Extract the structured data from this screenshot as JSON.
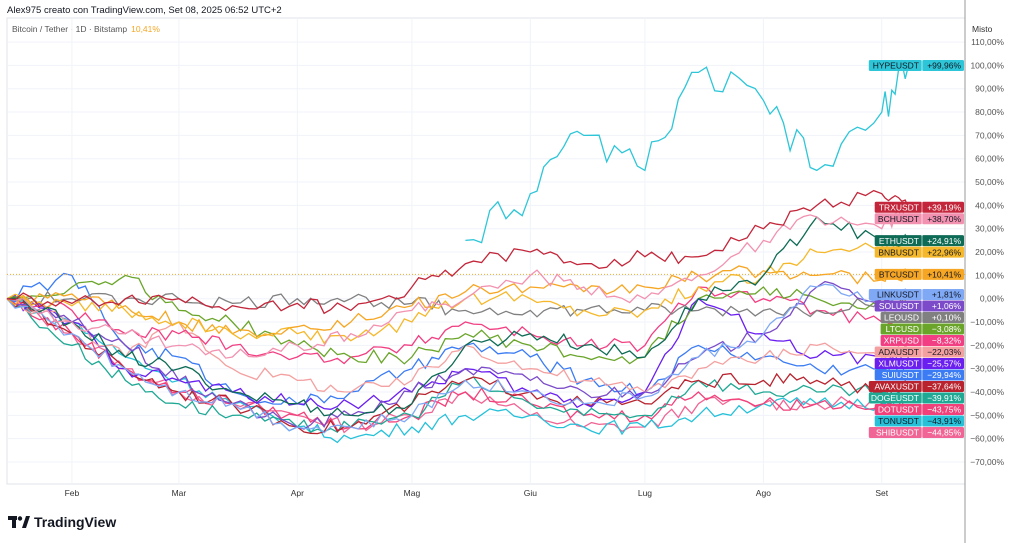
{
  "header": {
    "title": "Alex975 creato con TradingView.com, Set 08, 2025 06:52 UTC+2"
  },
  "legend": {
    "symbol": "Bitcoin / Tether · 1D · Bitstamp",
    "value": "10,41%"
  },
  "axis_mode": "Misto",
  "logo": {
    "text": "TradingView",
    "icon": "tradingview-logo-icon"
  },
  "chart_data": {
    "type": "line",
    "ylabel": "",
    "xlabel": "",
    "ylim": [
      -75,
      115
    ],
    "y_unit": "%",
    "yticks": [
      110,
      100,
      90,
      80,
      70,
      60,
      50,
      40,
      30,
      20,
      10,
      0,
      -10,
      -20,
      -30,
      -40,
      -50,
      -60,
      -70
    ],
    "x_tick_labels": [
      "Feb",
      "Mar",
      "Apr",
      "Mag",
      "Giu",
      "Lug",
      "Ago",
      "Set"
    ],
    "x_tick_dates": [
      "2025-02-01",
      "2025-03-01",
      "2025-04-01",
      "2025-05-01",
      "2025-06-01",
      "2025-07-01",
      "2025-08-01",
      "2025-09-01"
    ],
    "x": [
      "2025-01-15",
      "2025-02-01",
      "2025-02-15",
      "2025-03-01",
      "2025-03-15",
      "2025-04-01",
      "2025-04-15",
      "2025-05-01",
      "2025-05-15",
      "2025-06-01",
      "2025-06-15",
      "2025-07-01",
      "2025-07-15",
      "2025-08-01",
      "2025-08-15",
      "2025-09-01",
      "2025-09-08"
    ],
    "grid": true,
    "legend_placement": "right",
    "series": [
      {
        "name": "HYPEUSDT",
        "label": "+99,96%",
        "color": "#2dc6d8",
        "dark_text": true,
        "values": [
          null,
          null,
          null,
          null,
          null,
          null,
          null,
          null,
          25,
          45,
          70,
          55,
          97,
          85,
          55,
          80,
          99.96
        ]
      },
      {
        "name": "TRXUSDT",
        "label": "+39,19%",
        "color": "#c3263a",
        "values": [
          0,
          -2,
          0,
          0,
          -3,
          -2,
          -5,
          5,
          15,
          20,
          15,
          18,
          18,
          30,
          40,
          45,
          39.19
        ]
      },
      {
        "name": "BCHUSDT",
        "label": "+38,70%",
        "color": "#f292b0",
        "dark_text": true,
        "values": [
          0,
          -10,
          -15,
          -20,
          -25,
          -20,
          -15,
          -5,
          0,
          10,
          5,
          0,
          10,
          25,
          35,
          30,
          38.7
        ]
      },
      {
        "name": "ETHUSDT",
        "label": "+24,91%",
        "color": "#0e6b55",
        "values": [
          0,
          -10,
          -25,
          -30,
          -40,
          -45,
          -50,
          -45,
          -20,
          -15,
          -20,
          -25,
          0,
          10,
          35,
          25,
          24.91
        ]
      },
      {
        "name": "BNBUSDT",
        "label": "+22,96%",
        "color": "#f5b82a",
        "dark_text": true,
        "values": [
          0,
          -3,
          -5,
          -10,
          -15,
          -15,
          -18,
          -10,
          0,
          0,
          -5,
          -5,
          5,
          10,
          20,
          22,
          22.96
        ]
      },
      {
        "name": "BTCUSDT",
        "label": "+10,41%",
        "color": "#f6a623",
        "dark_text": true,
        "values": [
          0,
          2,
          -3,
          -10,
          -15,
          -12,
          -10,
          -3,
          3,
          5,
          3,
          5,
          10,
          12,
          10,
          8,
          10.41
        ]
      },
      {
        "name": "LINKUSDT",
        "label": "+1,81%",
        "color": "#7fa8f5",
        "dark_text": true,
        "values": [
          0,
          -15,
          -30,
          -40,
          -45,
          -55,
          -55,
          -50,
          -35,
          -40,
          -45,
          -42,
          -25,
          -15,
          5,
          0,
          1.81
        ]
      },
      {
        "name": "SOLUSDT",
        "label": "+1,06%",
        "color": "#7b4bc9",
        "values": [
          0,
          -10,
          -20,
          -35,
          -45,
          -55,
          -50,
          -40,
          -30,
          -35,
          -40,
          -40,
          -25,
          -15,
          5,
          0,
          1.06
        ]
      },
      {
        "name": "LEOUSD",
        "label": "+0,10%",
        "color": "#808080",
        "values": [
          0,
          0,
          0,
          0,
          -2,
          0,
          0,
          -2,
          -5,
          -5,
          -5,
          -5,
          -5,
          -5,
          -5,
          0,
          0.1
        ]
      },
      {
        "name": "LTCUSD",
        "label": "−3,08%",
        "color": "#6aa52a",
        "values": [
          0,
          5,
          10,
          -5,
          -10,
          -20,
          -25,
          -25,
          -15,
          -20,
          -25,
          -25,
          0,
          5,
          0,
          -5,
          -3.08
        ]
      },
      {
        "name": "XRPUSD",
        "label": "−8,32%",
        "color": "#f23e82",
        "values": [
          0,
          -5,
          -15,
          -15,
          -20,
          -25,
          -25,
          -20,
          -10,
          -15,
          -20,
          -20,
          5,
          0,
          -5,
          -10,
          -8.32
        ]
      },
      {
        "name": "ADAUSDT",
        "label": "−22,03%",
        "color": "#f4a0a0",
        "dark_text": true,
        "values": [
          0,
          -10,
          -25,
          -10,
          -30,
          -35,
          -40,
          -35,
          -20,
          -30,
          -35,
          -40,
          -30,
          -25,
          -20,
          -25,
          -22.03
        ]
      },
      {
        "name": "XLMUSDT",
        "label": "−25,57%",
        "color": "#6a1ff0",
        "values": [
          0,
          -10,
          -30,
          -35,
          -40,
          -45,
          -45,
          -40,
          -30,
          -40,
          -45,
          -40,
          0,
          -15,
          -25,
          -25,
          -25.57
        ]
      },
      {
        "name": "SUIUSDT",
        "label": "−29,94%",
        "color": "#3b7cf4",
        "values": [
          0,
          10,
          -20,
          -25,
          -40,
          -45,
          -40,
          -30,
          -20,
          -25,
          -35,
          -40,
          -20,
          -25,
          -30,
          -30,
          -29.94
        ]
      },
      {
        "name": "AVAXUSDT",
        "label": "−37,64%",
        "color": "#b8232e",
        "values": [
          0,
          -15,
          -30,
          -40,
          -45,
          -55,
          -55,
          -45,
          -35,
          -40,
          -45,
          -45,
          -35,
          -35,
          -35,
          -40,
          -37.64
        ]
      },
      {
        "name": "DOGEUSDT",
        "label": "−39,91%",
        "color": "#1fa894",
        "values": [
          0,
          -20,
          -35,
          -45,
          -50,
          -55,
          -55,
          -50,
          -35,
          -45,
          -50,
          -50,
          -35,
          -40,
          -40,
          -40,
          -39.91
        ]
      },
      {
        "name": "DOTUSDT",
        "label": "−43,75%",
        "color": "#f2407a",
        "values": [
          0,
          -15,
          -30,
          -40,
          -45,
          -50,
          -55,
          -50,
          -40,
          -45,
          -50,
          -50,
          -40,
          -45,
          -45,
          -45,
          -43.75
        ]
      },
      {
        "name": "TONUSDT",
        "label": "−43,91%",
        "color": "#26c1d9",
        "dark_text": true,
        "values": [
          0,
          -10,
          -25,
          -35,
          -45,
          -55,
          -60,
          -55,
          -50,
          -50,
          -55,
          -55,
          -50,
          -45,
          -45,
          -45,
          -43.91
        ]
      },
      {
        "name": "SHIBUSDT",
        "label": "−44,85%",
        "color": "#f06595",
        "values": [
          0,
          -15,
          -30,
          -40,
          -45,
          -50,
          -55,
          -50,
          -40,
          -50,
          -55,
          -55,
          -45,
          -45,
          -45,
          -45,
          -44.85
        ]
      }
    ]
  }
}
